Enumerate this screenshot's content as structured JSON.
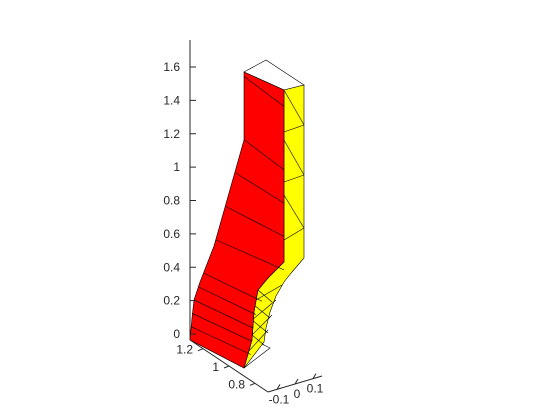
{
  "chart_data": {
    "type": "surface3d",
    "title": "",
    "xlabel": "",
    "ylabel": "",
    "zlabel": "",
    "grid": false,
    "legend": "none",
    "colors": {
      "front_face": "#ff0000",
      "side_face": "#ffff00",
      "edges": "#000000",
      "axes": "#262626",
      "background": "#ffffff"
    },
    "z_axis": {
      "range": [
        0,
        1.75
      ],
      "ticks": [
        0,
        0.2,
        0.4,
        0.6,
        0.8,
        1,
        1.2,
        1.4,
        1.6
      ],
      "tick_labels": [
        "0",
        "0.2",
        "0.4",
        "0.6",
        "0.8",
        "1",
        "1.2",
        "1.4",
        "1.6"
      ]
    },
    "x_axis": {
      "range": [
        0.7,
        1.3
      ],
      "ticks": [
        0.8,
        1,
        1.2
      ],
      "tick_labels": [
        "0.8",
        "1",
        "1.2"
      ]
    },
    "y_axis": {
      "range": [
        -0.15,
        0.15
      ],
      "ticks": [
        -0.1,
        0,
        0.1
      ],
      "tick_labels": [
        "-0.1",
        "0",
        "0.1"
      ]
    },
    "front_levels": [
      0,
      0.08,
      0.16,
      0.24,
      0.32,
      0.4,
      0.6,
      0.8,
      1.0,
      1.2,
      1.58
    ]
  }
}
